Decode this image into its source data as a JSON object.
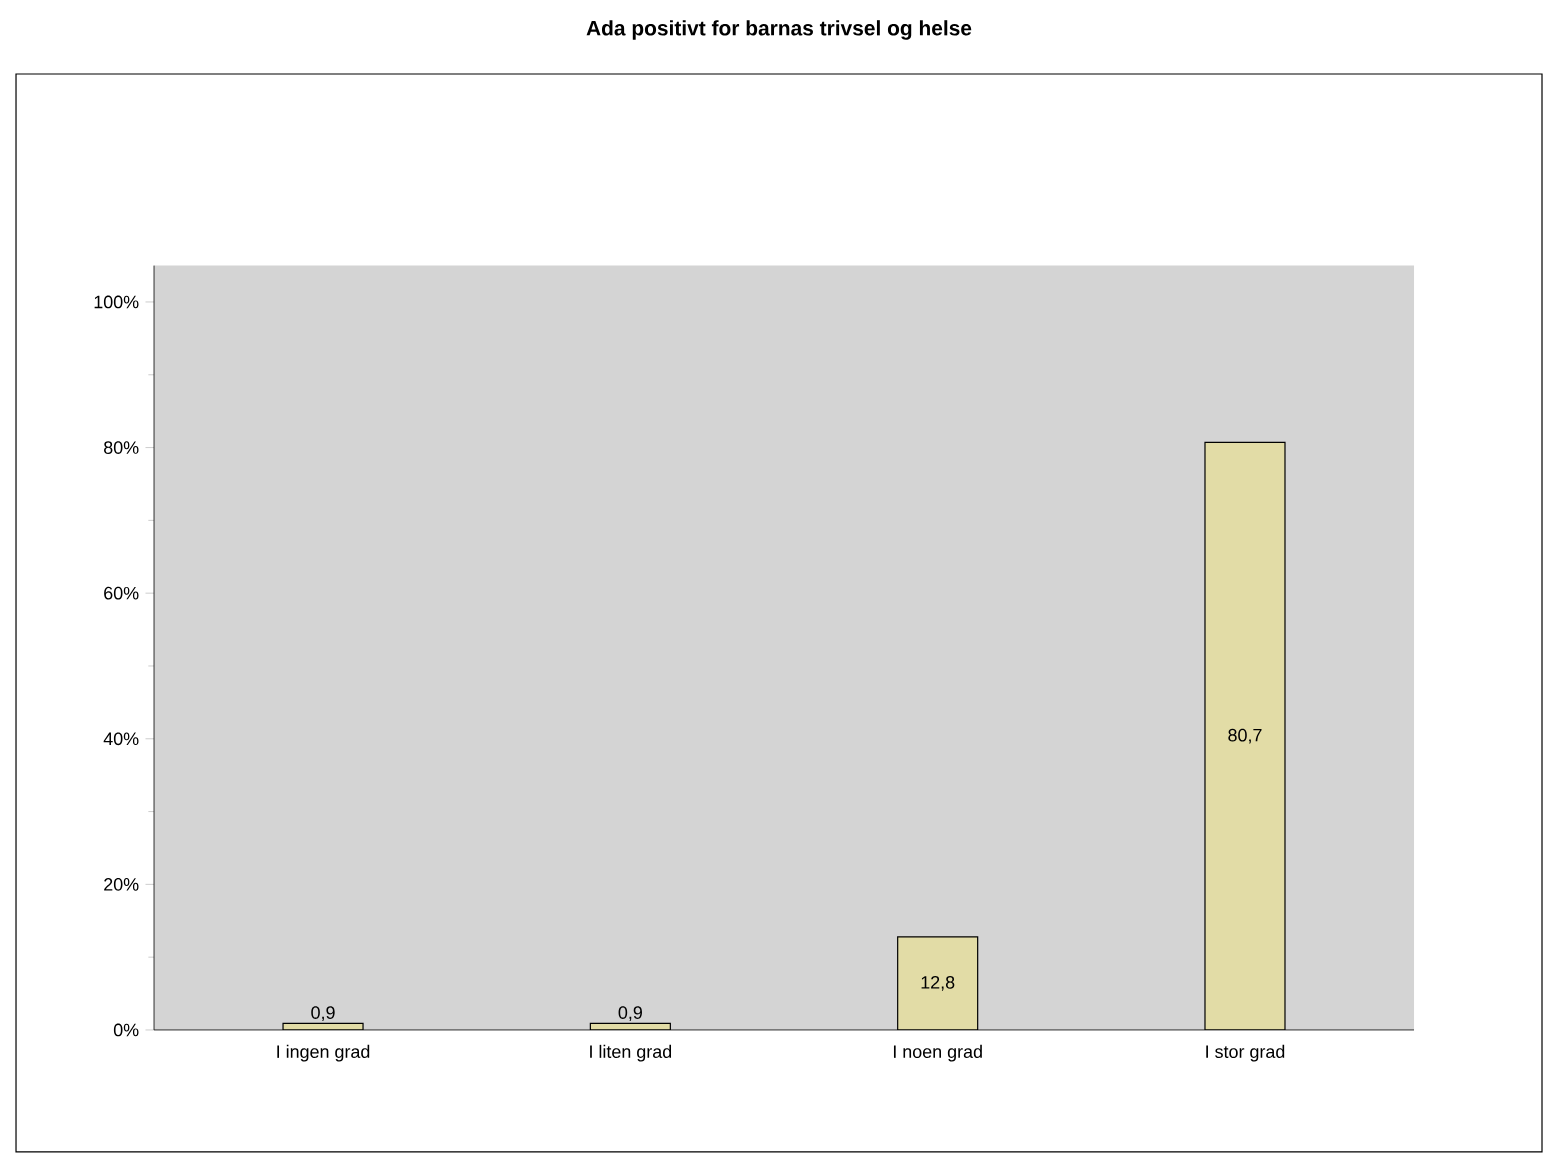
{
  "chart_data": {
    "type": "bar",
    "title": "Ada positivt for barnas trivsel og helse",
    "categories": [
      "I ingen grad",
      "I liten grad",
      "I noen grad",
      "I stor grad"
    ],
    "values": [
      0.9,
      0.9,
      12.8,
      80.7
    ],
    "value_labels": [
      "0,9",
      "0,9",
      "12,8",
      "80,7"
    ],
    "color": "#e2dca6",
    "ylim": [
      0,
      105
    ],
    "yticks": [
      {
        "value": 0,
        "label": "0%"
      },
      {
        "value": 20,
        "label": "20%"
      },
      {
        "value": 40,
        "label": "40%"
      },
      {
        "value": 60,
        "label": "60%"
      },
      {
        "value": 80,
        "label": "80%"
      },
      {
        "value": 100,
        "label": "100%"
      }
    ],
    "grid": false,
    "legend": false
  }
}
